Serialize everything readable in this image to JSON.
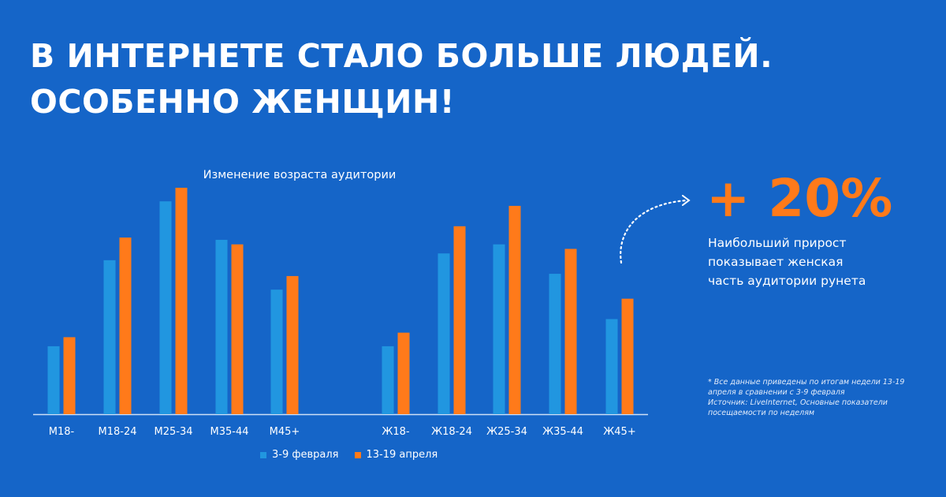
{
  "headline": {
    "line1": "В ИНТЕРНЕТЕ СТАЛО БОЛЬШЕ ЛЮДЕЙ.",
    "line2": "ОСОБЕННО ЖЕНЩИН!"
  },
  "colors": {
    "background": "#1565c8",
    "series_feb": "#2196e0",
    "series_apr": "#ff7a1a",
    "text": "#ffffff"
  },
  "stat": {
    "value": "+ 20%",
    "desc_line1": "Наибольший прирост",
    "desc_line2": "показывает женская",
    "desc_line3": "часть аудитории рунета"
  },
  "footnote": {
    "line1": "* Все данные приведены по итогам недели 13-19",
    "line2": "апреля в сравнении с 3-9 февраля",
    "line3": "Источник: LiveInternet, Основные показатели",
    "line4": "посещаемости по неделям"
  },
  "arrow_icon": "dotted-curved-arrow-icon",
  "chart_data": {
    "type": "bar",
    "title": "Изменение возраста аудитории",
    "categories": [
      "М18-",
      "М18-24",
      "М25-34",
      "М35-44",
      "М45+",
      "Ж18-",
      "Ж18-24",
      "Ж25-34",
      "Ж35-44",
      "Ж45+"
    ],
    "series": [
      {
        "name": "3-9 февраля",
        "values": [
          30,
          68,
          94,
          77,
          55,
          30,
          71,
          75,
          62,
          42
        ]
      },
      {
        "name": "13-19 апреля",
        "values": [
          34,
          78,
          100,
          75,
          61,
          36,
          83,
          92,
          73,
          51
        ]
      }
    ],
    "ylim": [
      0,
      100
    ],
    "grid": false,
    "legend_position": "bottom"
  }
}
